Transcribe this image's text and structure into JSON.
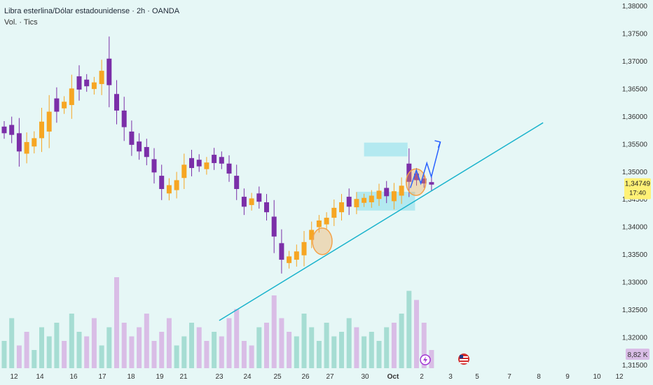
{
  "header": {
    "title": "Libra esterlina/Dólar estadounidense · 2h · OANDA",
    "subtitle": "Vol. · Tics"
  },
  "chart_data": {
    "type": "candlestick",
    "symbol": "GBPUSD",
    "interval": "2h",
    "ylim": [
      1.315,
      1.38
    ],
    "y_ticks": [
      "1,38000",
      "1,37500",
      "1,37000",
      "1,36500",
      "1,36000",
      "1,35500",
      "1,35000",
      "1,34500",
      "1,34000",
      "1,33500",
      "1,33000",
      "1,32500",
      "1,32000",
      "1,31500"
    ],
    "x_ticks": [
      "12",
      "14",
      "16",
      "17",
      "18",
      "19",
      "21",
      "23",
      "24",
      "25",
      "26",
      "27",
      "30",
      "Oct",
      "2",
      "3",
      "5",
      "7",
      "8",
      "9",
      "10",
      "12"
    ],
    "current_price": "1,34749",
    "countdown": "17:40",
    "volume_label": "8,82 K",
    "price_path": [
      [
        1.3565,
        1.3585
      ],
      [
        1.356,
        1.359
      ],
      [
        1.3525,
        1.358
      ],
      [
        1.3525,
        1.356
      ],
      [
        1.354,
        1.3565
      ],
      [
        1.355,
        1.36
      ],
      [
        1.356,
        1.362
      ],
      [
        1.36,
        1.364
      ],
      [
        1.361,
        1.363
      ],
      [
        1.361,
        1.366
      ],
      [
        1.364,
        1.368
      ],
      [
        1.365,
        1.367
      ],
      [
        1.3645,
        1.3665
      ],
      [
        1.365,
        1.369
      ],
      [
        1.364,
        1.372
      ],
      [
        1.36,
        1.365
      ],
      [
        1.357,
        1.362
      ],
      [
        1.354,
        1.358
      ],
      [
        1.353,
        1.356
      ],
      [
        1.352,
        1.355
      ],
      [
        1.349,
        1.353
      ],
      [
        1.346,
        1.35
      ],
      [
        1.3455,
        1.348
      ],
      [
        1.346,
        1.349
      ],
      [
        1.348,
        1.352
      ],
      [
        1.35,
        1.353
      ],
      [
        1.3505,
        1.3525
      ],
      [
        1.35,
        1.352
      ],
      [
        1.351,
        1.3535
      ],
      [
        1.351,
        1.353
      ],
      [
        1.349,
        1.352
      ],
      [
        1.346,
        1.35
      ],
      [
        1.343,
        1.346
      ],
      [
        1.3435,
        1.3455
      ],
      [
        1.344,
        1.3465
      ],
      [
        1.342,
        1.345
      ],
      [
        1.337,
        1.343
      ],
      [
        1.333,
        1.338
      ],
      [
        1.333,
        1.335
      ],
      [
        1.3335,
        1.336
      ],
      [
        1.334,
        1.338
      ],
      [
        1.337,
        1.34
      ],
      [
        1.3395,
        1.3415
      ],
      [
        1.34,
        1.342
      ],
      [
        1.341,
        1.344
      ],
      [
        1.342,
        1.345
      ],
      [
        1.343,
        1.346
      ],
      [
        1.343,
        1.3455
      ],
      [
        1.344,
        1.3455
      ],
      [
        1.344,
        1.346
      ],
      [
        1.3445,
        1.347
      ],
      [
        1.345,
        1.3475
      ],
      [
        1.344,
        1.347
      ],
      [
        1.345,
        1.348
      ],
      [
        1.347,
        1.3525
      ],
      [
        1.348,
        1.35
      ],
      [
        1.3475,
        1.349
      ],
      [
        1.347,
        1.3485
      ]
    ],
    "volume": [
      0.3,
      0.55,
      0.25,
      0.4,
      0.2,
      0.45,
      0.35,
      0.5,
      0.3,
      0.6,
      0.4,
      0.35,
      0.55,
      0.25,
      0.45,
      1.0,
      0.5,
      0.35,
      0.45,
      0.6,
      0.3,
      0.4,
      0.55,
      0.25,
      0.35,
      0.5,
      0.45,
      0.3,
      0.4,
      0.35,
      0.55,
      0.65,
      0.3,
      0.25,
      0.45,
      0.5,
      0.8,
      0.55,
      0.4,
      0.35,
      0.6,
      0.45,
      0.3,
      0.5,
      0.35,
      0.4,
      0.55,
      0.45,
      0.35,
      0.4,
      0.3,
      0.45,
      0.5,
      0.6,
      0.85,
      0.75,
      0.5,
      0.2
    ],
    "zones": [
      {
        "x": [
          48,
          51
        ],
        "y": [
          1.3527,
          1.3552
        ]
      },
      {
        "x": [
          47,
          52
        ],
        "y": [
          1.3429,
          1.3463
        ]
      }
    ],
    "trendline": {
      "x": [
        27,
        54.5
      ],
      "y": [
        1.323,
        1.3588
      ]
    },
    "circles": [
      {
        "x": 40,
        "y": 1.3348
      },
      {
        "x": 52.5,
        "y": 1.3455
      }
    ],
    "projection": [
      [
        53.8,
        1.347
      ],
      [
        54.6,
        1.3502
      ],
      [
        55.2,
        1.3478
      ],
      [
        56.0,
        1.3515
      ],
      [
        56.6,
        1.349
      ],
      [
        57.8,
        1.3553
      ]
    ],
    "colors": {
      "up": "#f6a623",
      "down": "#7b2fa8",
      "volume_up": "#a6ddd3",
      "volume_down": "#d9bde6",
      "trend": "#1ab3cc",
      "zone": "#a9e6ee",
      "circle": "#f4a24a",
      "projection": "#2962ff",
      "price_tag": "#fff176"
    }
  }
}
